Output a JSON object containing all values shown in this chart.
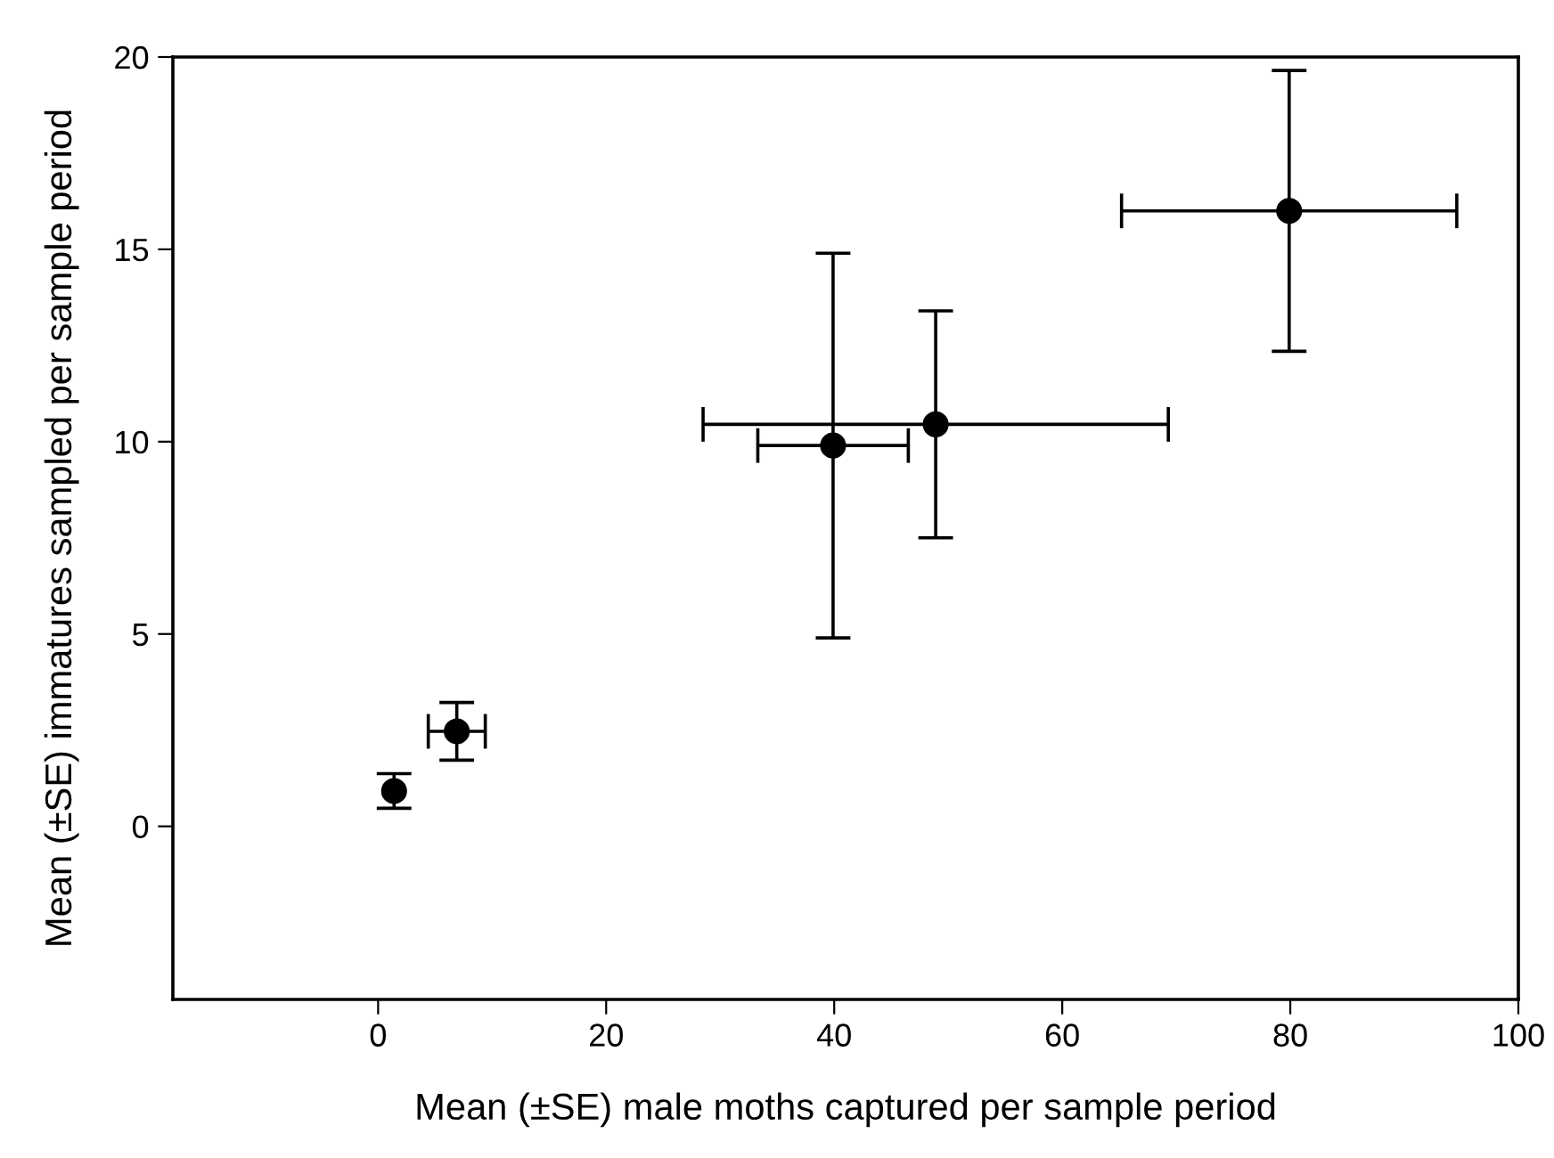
{
  "chart_data": {
    "type": "scatter",
    "xlabel": "Mean (±SE) male moths captured per sample period",
    "ylabel": "Mean (±SE) immatures sampled per sample period",
    "x": [
      1.4,
      6.9,
      39.9,
      48.9,
      79.9
    ],
    "values": [
      0.92,
      2.47,
      9.9,
      10.45,
      16.0
    ],
    "errors": [
      0.45,
      0.75,
      5.0,
      2.95,
      3.65
    ],
    "xerrors": [
      null,
      2.5,
      6.6,
      20.4,
      14.7
    ],
    "color": "#000000",
    "marker": "circle",
    "xlim": [
      -18,
      100
    ],
    "ylim": [
      -4.5,
      20
    ],
    "xticks": [
      0,
      20,
      40,
      60,
      80,
      100
    ],
    "yticks": [
      0,
      5,
      10,
      15,
      20
    ],
    "grid": false,
    "legend": false
  }
}
